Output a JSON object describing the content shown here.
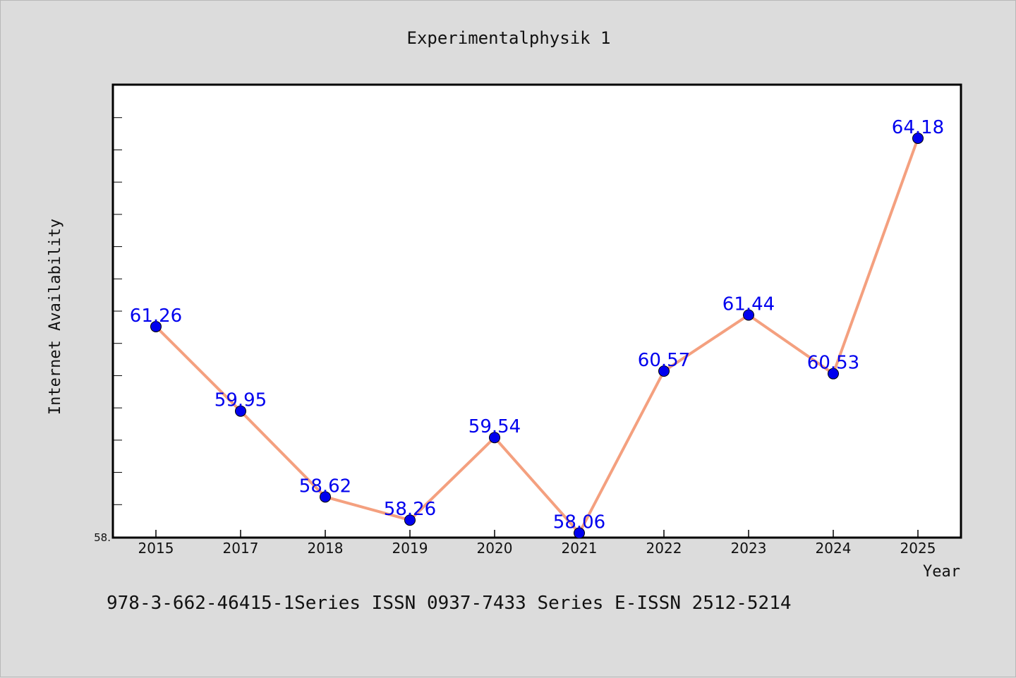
{
  "chart_data": {
    "type": "line",
    "title": "Experimentalphysik 1",
    "xlabel": "Year",
    "ylabel": "Internet Availability",
    "categories": [
      "2015",
      "2017",
      "2018",
      "2019",
      "2020",
      "2021",
      "2022",
      "2023",
      "2024",
      "2025"
    ],
    "series": [
      {
        "values": [
          61.26,
          59.95,
          58.62,
          58.26,
          59.54,
          58.06,
          60.57,
          61.44,
          60.53,
          64.18
        ]
      }
    ],
    "data_labels": [
      "61.26",
      "59.95",
      "58.62",
      "58.26",
      "59.54",
      "58.06",
      "60.57",
      "61.44",
      "60.53",
      "64.18"
    ],
    "ylim": [
      58.0,
      65.0
    ],
    "y_tick_labels": [
      "58."
    ],
    "grid": false,
    "line_color": "#f4a07f",
    "marker_color": "#0000ee",
    "label_color": "#0000ee",
    "background_color": "#dcdcdc",
    "plot_background": "#ffffff"
  },
  "footer": {
    "text": "978-3-662-46415-1Series ISSN 0937-7433 Series E-ISSN 2512-5214"
  }
}
